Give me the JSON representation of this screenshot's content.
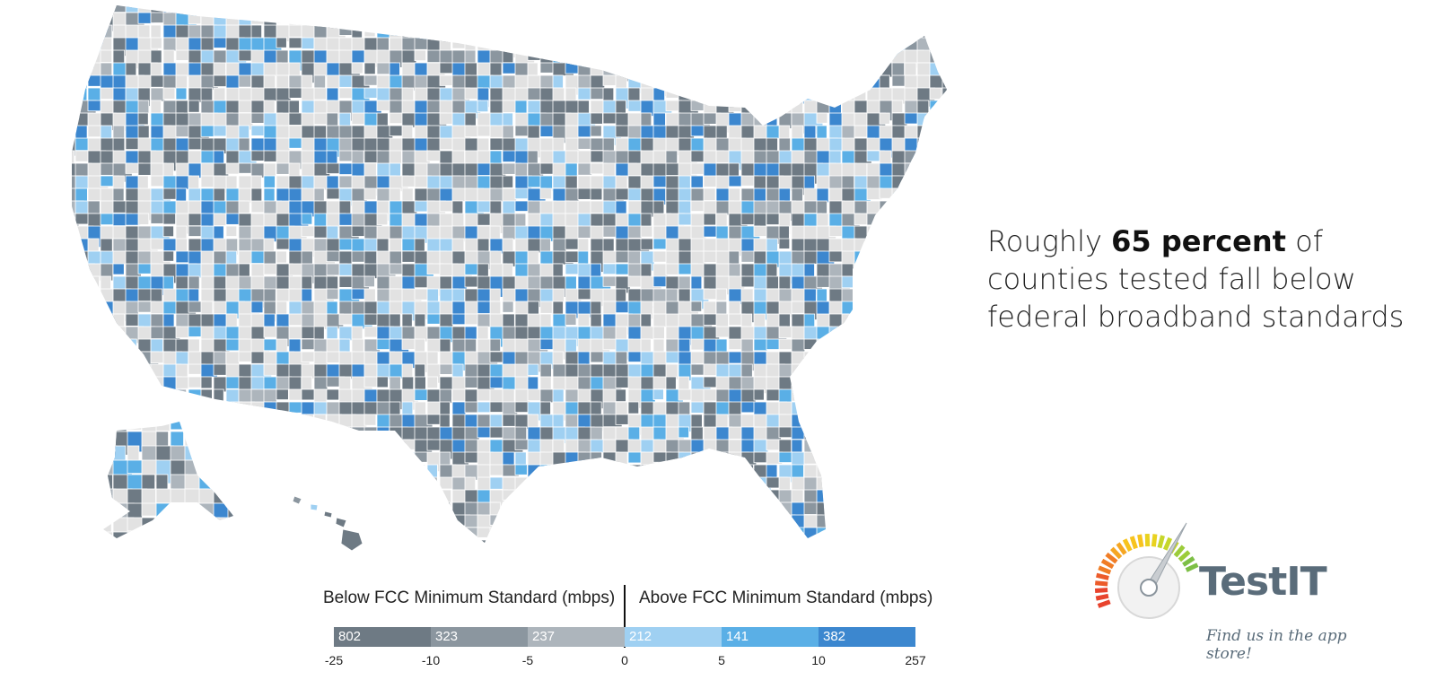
{
  "headline": {
    "prefix": "Roughly ",
    "bold": "65 percent",
    "suffix": " of",
    "line2": "counties tested fall below",
    "line3": "federal broadband standards"
  },
  "legend": {
    "below_title": "Below FCC Minimum Standard (mbps)",
    "above_title": "Above FCC Minimum Standard (mbps)",
    "segments": [
      {
        "count": "802",
        "color": "#6e7a84"
      },
      {
        "count": "323",
        "color": "#8b969f"
      },
      {
        "count": "237",
        "color": "#adb5bc"
      },
      {
        "count": "212",
        "color": "#9fd0f2"
      },
      {
        "count": "141",
        "color": "#5aafe6"
      },
      {
        "count": "382",
        "color": "#3c87cf"
      }
    ],
    "ticks": [
      "-25",
      "-10",
      "-5",
      "0",
      "5",
      "10",
      "257"
    ]
  },
  "map": {
    "colors": {
      "no_data": "#e2e2e2",
      "below_high": "#6e7a84",
      "below_mid": "#8b969f",
      "below_low": "#adb5bc",
      "above_low": "#9fd0f2",
      "above_mid": "#5aafe6",
      "above_high": "#3c87cf"
    }
  },
  "logo": {
    "brand": "TestIT",
    "tagline": "Find us in the app store!",
    "icon": "speedometer-gauge-icon"
  }
}
